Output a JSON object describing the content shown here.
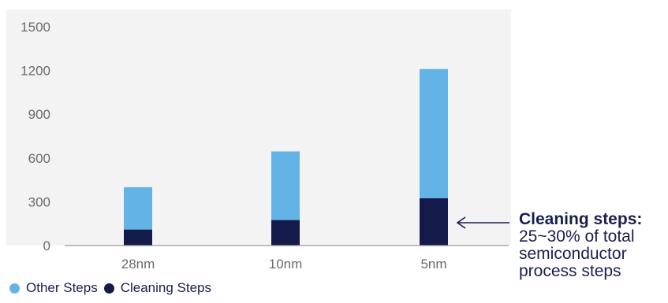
{
  "chart_data": {
    "type": "bar",
    "stacked": true,
    "categories": [
      "28nm",
      "10nm",
      "5nm"
    ],
    "series": [
      {
        "name": "Cleaning Steps",
        "values": [
          110,
          175,
          325
        ],
        "color": "#141a4a"
      },
      {
        "name": "Other Steps",
        "values": [
          290,
          470,
          885
        ],
        "color": "#63b3e6"
      }
    ],
    "ylim": [
      0,
      1500
    ],
    "yticks": [
      0,
      300,
      600,
      900,
      1200,
      1500
    ],
    "grid": false,
    "legend_position": "bottom-left",
    "title": "",
    "xlabel": "",
    "ylabel": ""
  },
  "legend": {
    "other_label": "Other Steps",
    "cleaning_label": "Cleaning Steps"
  },
  "callout": {
    "title": "Cleaning steps:",
    "line1": "25~30% of total",
    "line2": "semiconductor",
    "line3": "process steps"
  }
}
